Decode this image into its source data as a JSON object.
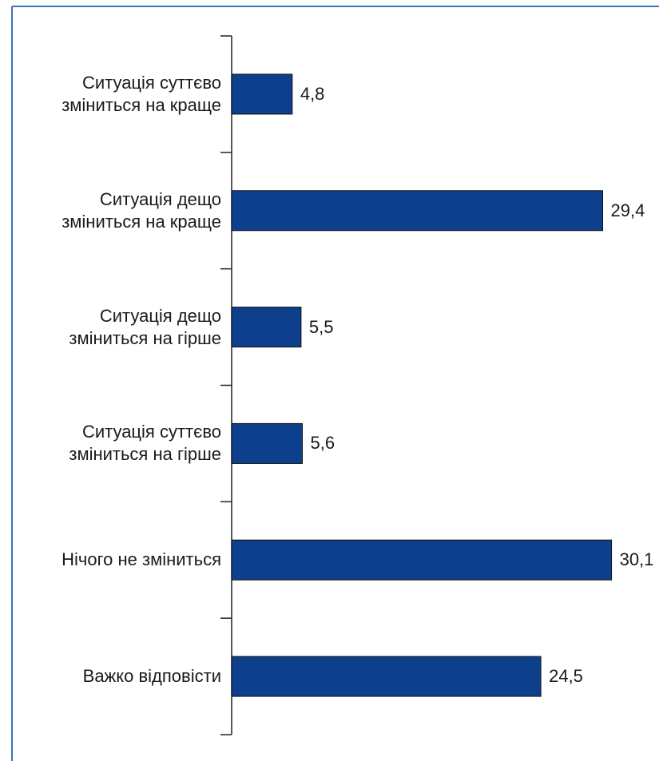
{
  "chart_data": {
    "type": "barh",
    "categories": [
      "Ситуація суттєво\nзміниться на краще",
      "Ситуація дещо\nзміниться на краще",
      "Ситуація дещо\nзміниться на гірше",
      "Ситуація суттєво\nзміниться на гірше",
      "Нічого не зміниться",
      "Важко відповісти"
    ],
    "values": [
      4.8,
      29.4,
      5.5,
      5.6,
      30.1,
      24.5
    ],
    "value_labels": [
      "4,8",
      "29,4",
      "5,5",
      "5,6",
      "30,1",
      "24,5"
    ],
    "color": "#0e3f8c"
  }
}
